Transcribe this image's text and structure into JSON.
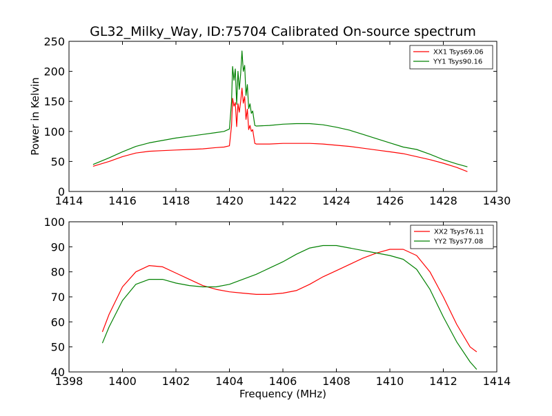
{
  "chart_data": [
    {
      "type": "line",
      "title": "GL32_Milky_Way, ID:75704 Calibrated On-source spectrum",
      "xlabel": "",
      "ylabel": "Power in Kelvin",
      "xlim": [
        1414,
        1430
      ],
      "ylim": [
        0,
        250
      ],
      "xticks": [
        "1414",
        "1416",
        "1418",
        "1420",
        "1422",
        "1424",
        "1426",
        "1428",
        "1430"
      ],
      "yticks": [
        "0",
        "50",
        "100",
        "150",
        "200",
        "250"
      ],
      "grid": false,
      "legend_position": "top-right",
      "series": [
        {
          "name": "XX1 Tsys69.06",
          "color": "#ff0000",
          "x": [
            1414.9,
            1415.5,
            1416.0,
            1416.5,
            1417.0,
            1417.5,
            1418.0,
            1418.5,
            1419.0,
            1419.5,
            1419.8,
            1420.0,
            1420.08,
            1420.12,
            1420.17,
            1420.22,
            1420.27,
            1420.32,
            1420.37,
            1420.42,
            1420.47,
            1420.52,
            1420.57,
            1420.62,
            1420.67,
            1420.72,
            1420.77,
            1420.82,
            1420.87,
            1420.95,
            1421.0,
            1421.5,
            1422.0,
            1422.5,
            1423.0,
            1423.5,
            1424.0,
            1424.5,
            1425.0,
            1425.5,
            1426.0,
            1426.5,
            1427.0,
            1427.5,
            1428.0,
            1428.5,
            1428.9
          ],
          "y": [
            42,
            50,
            58,
            64,
            67,
            68,
            69,
            70,
            71,
            73,
            74,
            76,
            110,
            155,
            142,
            148,
            108,
            146,
            132,
            150,
            172,
            147,
            158,
            120,
            137,
            103,
            110,
            100,
            103,
            80,
            79,
            79,
            80,
            80,
            80,
            79,
            77,
            75,
            72,
            69,
            66,
            63,
            58,
            53,
            47,
            40,
            33
          ]
        },
        {
          "name": "YY1 Tsys90.16",
          "color": "#008000",
          "x": [
            1414.9,
            1415.5,
            1416.0,
            1416.5,
            1417.0,
            1417.5,
            1418.0,
            1418.5,
            1419.0,
            1419.5,
            1419.8,
            1420.0,
            1420.08,
            1420.12,
            1420.17,
            1420.22,
            1420.27,
            1420.32,
            1420.37,
            1420.42,
            1420.47,
            1420.52,
            1420.57,
            1420.62,
            1420.67,
            1420.72,
            1420.77,
            1420.82,
            1420.87,
            1420.95,
            1421.0,
            1421.5,
            1422.0,
            1422.5,
            1423.0,
            1423.5,
            1424.0,
            1424.5,
            1425.0,
            1425.5,
            1426.0,
            1426.5,
            1427.0,
            1427.5,
            1428.0,
            1428.5,
            1428.9
          ],
          "y": [
            45,
            56,
            66,
            75,
            81,
            85,
            89,
            92,
            95,
            98,
            100,
            104,
            150,
            208,
            185,
            204,
            145,
            200,
            170,
            196,
            234,
            200,
            210,
            160,
            178,
            138,
            146,
            130,
            134,
            110,
            109,
            110,
            112,
            113,
            113,
            111,
            107,
            102,
            95,
            88,
            81,
            74,
            70,
            62,
            53,
            46,
            41
          ]
        }
      ]
    },
    {
      "type": "line",
      "title": "",
      "xlabel": "Frequency (MHz)",
      "ylabel": "",
      "xlim": [
        1398,
        1414
      ],
      "ylim": [
        40,
        100
      ],
      "xticks": [
        "1398",
        "1400",
        "1402",
        "1404",
        "1406",
        "1408",
        "1410",
        "1412",
        "1414"
      ],
      "yticks": [
        "40",
        "50",
        "60",
        "70",
        "80",
        "90",
        "100"
      ],
      "grid": false,
      "legend_position": "top-right",
      "series": [
        {
          "name": "XX2 Tsys76.11",
          "color": "#ff0000",
          "x": [
            1399.25,
            1399.5,
            1400.0,
            1400.5,
            1401.0,
            1401.5,
            1402.0,
            1402.5,
            1403.0,
            1403.5,
            1404.0,
            1404.5,
            1405.0,
            1405.5,
            1406.0,
            1406.5,
            1407.0,
            1407.5,
            1408.0,
            1408.5,
            1409.0,
            1409.5,
            1410.0,
            1410.5,
            1411.0,
            1411.5,
            1412.0,
            1412.5,
            1413.0,
            1413.25
          ],
          "y": [
            56,
            63,
            74,
            80,
            82.5,
            82,
            79.5,
            77,
            74.5,
            73,
            72,
            71.5,
            71,
            71,
            71.5,
            72.5,
            75,
            78,
            80.5,
            83,
            85.5,
            87.5,
            89,
            89,
            86.5,
            80,
            70,
            59,
            50,
            48
          ]
        },
        {
          "name": "YY2 Tsys77.08",
          "color": "#008000",
          "x": [
            1399.25,
            1399.5,
            1400.0,
            1400.5,
            1401.0,
            1401.5,
            1402.0,
            1402.5,
            1403.0,
            1403.5,
            1404.0,
            1404.5,
            1405.0,
            1405.5,
            1406.0,
            1406.5,
            1407.0,
            1407.5,
            1408.0,
            1408.5,
            1409.0,
            1409.5,
            1410.0,
            1410.5,
            1411.0,
            1411.5,
            1412.0,
            1412.5,
            1413.0,
            1413.25
          ],
          "y": [
            51.5,
            58,
            68.5,
            75,
            77,
            77,
            75.5,
            74.5,
            74,
            74,
            75,
            77,
            79,
            81.5,
            84,
            87,
            89.5,
            90.5,
            90.5,
            89.5,
            88.5,
            87.5,
            86.5,
            85,
            81,
            73,
            62,
            52,
            44,
            41
          ]
        }
      ]
    }
  ]
}
